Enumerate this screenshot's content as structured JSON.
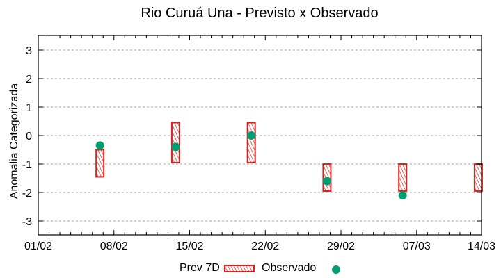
{
  "chart_data": {
    "type": "bar",
    "title": "Rio Curuá Una - Previsto x Observado",
    "xlabel": "",
    "ylabel": "Anomalia Categorizada",
    "ylim": [
      -3.5,
      3.5
    ],
    "yticks": [
      3,
      2,
      1,
      0,
      -1,
      -2,
      -3
    ],
    "xlim_days": [
      0,
      41
    ],
    "xticks": [
      {
        "label": "01/02",
        "day": 0
      },
      {
        "label": "08/02",
        "day": 7
      },
      {
        "label": "15/02",
        "day": 14
      },
      {
        "label": "22/02",
        "day": 21
      },
      {
        "label": "29/02",
        "day": 28
      },
      {
        "label": "07/03",
        "day": 35
      },
      {
        "label": "14/03",
        "day": 41
      }
    ],
    "grid": "horizontal dashed",
    "legend_position": "bottom",
    "series": [
      {
        "name": "Prev 7D",
        "kind": "floating-bar",
        "color": "#e0201a",
        "points": [
          {
            "date": "06/02",
            "day": 5,
            "top": -0.5,
            "bottom": -1.45
          },
          {
            "date": "13/02",
            "day": 12,
            "top": 0.45,
            "bottom": -0.95
          },
          {
            "date": "20/02",
            "day": 19,
            "top": 0.45,
            "bottom": -0.95
          },
          {
            "date": "27/02",
            "day": 26,
            "top": -1.0,
            "bottom": -1.95
          },
          {
            "date": "05/03",
            "day": 33,
            "top": -1.0,
            "bottom": -1.95
          },
          {
            "date": "12/03",
            "day": 40,
            "top": -1.0,
            "bottom": -1.95
          }
        ]
      },
      {
        "name": "Observado",
        "kind": "point",
        "color": "#009e73",
        "points": [
          {
            "date": "06/02",
            "day": 5,
            "value": -0.35
          },
          {
            "date": "13/02",
            "day": 12,
            "value": -0.4
          },
          {
            "date": "20/02",
            "day": 19,
            "value": 0.0
          },
          {
            "date": "27/02",
            "day": 26,
            "value": -1.6
          },
          {
            "date": "05/03",
            "day": 33,
            "value": -2.1
          }
        ]
      }
    ]
  },
  "legend": {
    "prev_label": "Prev 7D",
    "obs_label": "Observado"
  }
}
